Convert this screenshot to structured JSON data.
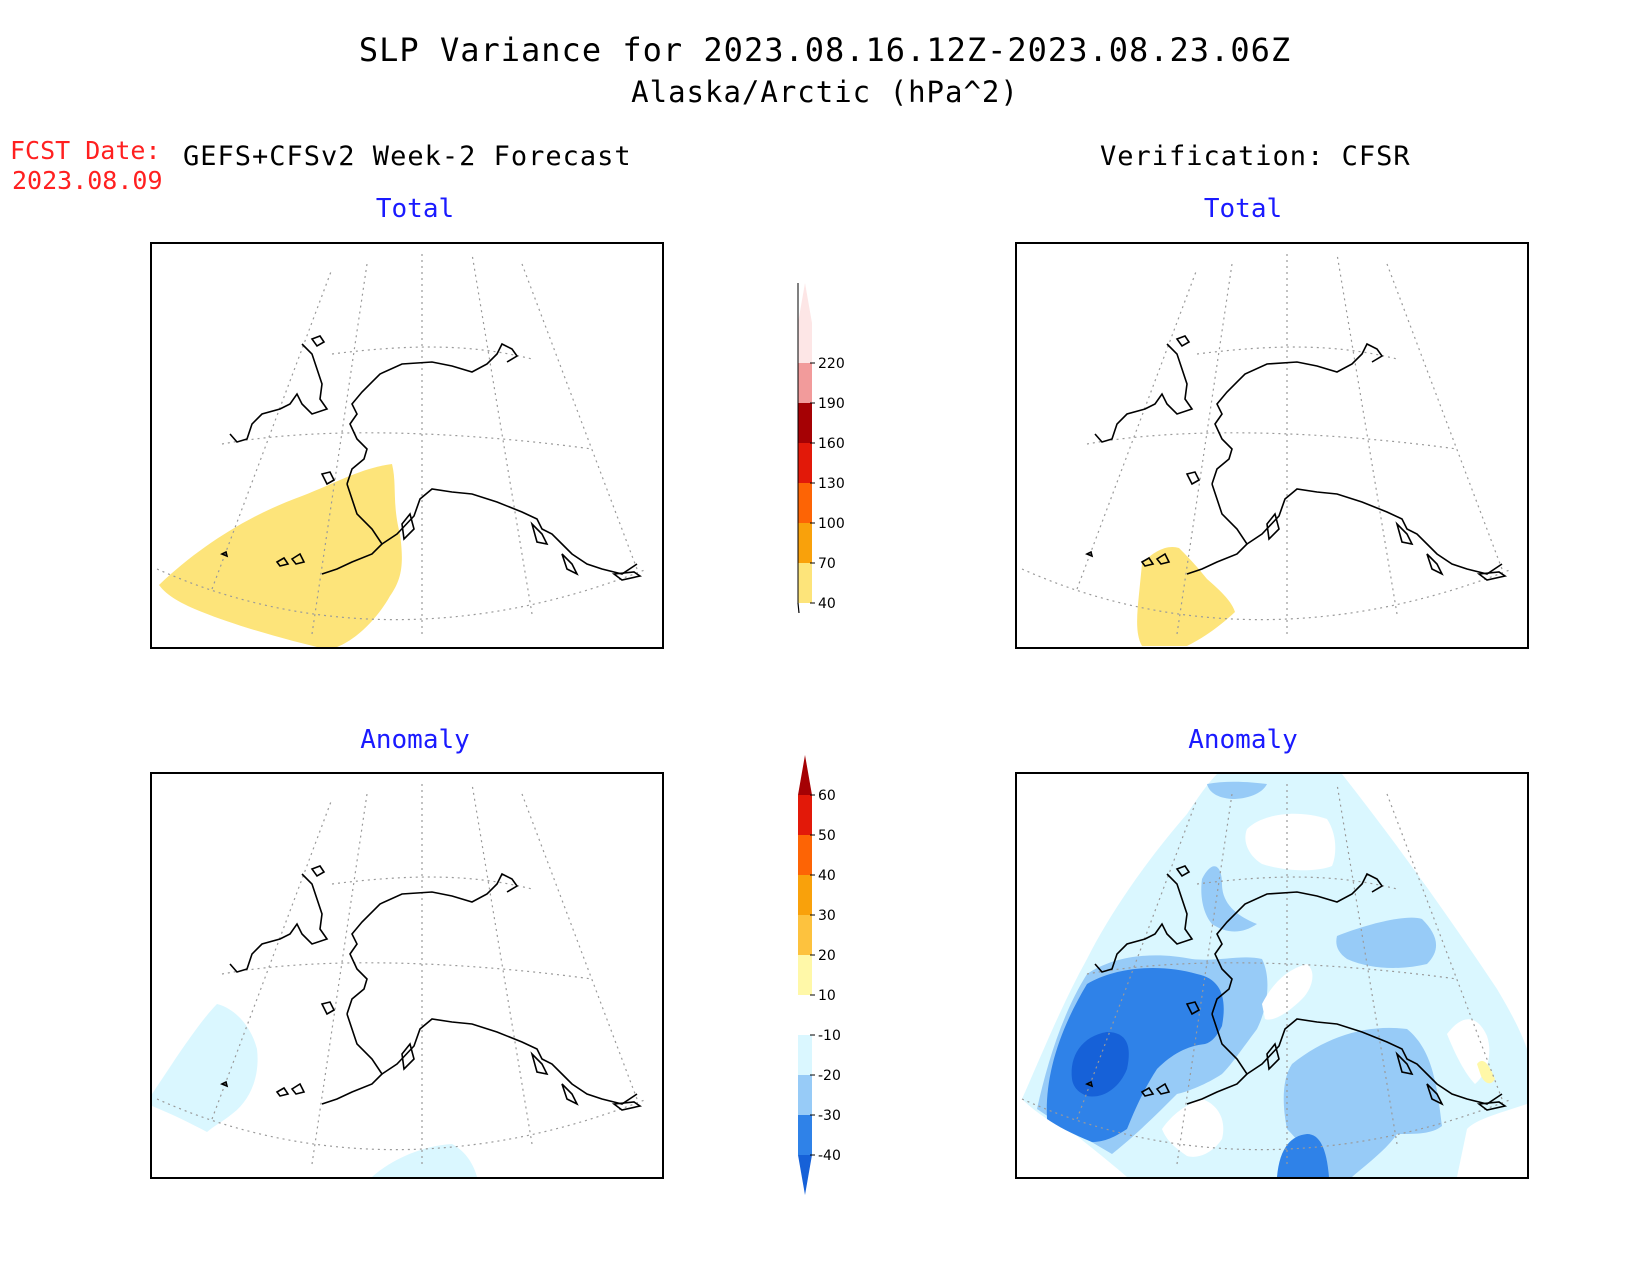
{
  "header": {
    "title": "SLP Variance for 2023.08.16.12Z-2023.08.23.06Z",
    "subtitle": "Alaska/Arctic (hPa^2)",
    "fcst_label": "FCST Date:",
    "fcst_date": "2023.08.09",
    "forecast_heading": "GEFS+CFSv2 Week-2 Forecast",
    "verification_heading": "Verification: CFSR"
  },
  "panels": {
    "fcst_total_title": "Total",
    "ver_total_title": "Total",
    "fcst_anom_title": "Anomaly",
    "ver_anom_title": "Anomaly"
  },
  "legend_total": {
    "labels": [
      "40",
      "70",
      "100",
      "130",
      "160",
      "190",
      "220"
    ],
    "colors": [
      "#fde47a",
      "#f9a10b",
      "#fd6405",
      "#e21909",
      "#a50104",
      "#f29b9b",
      "#fde6e6"
    ]
  },
  "legend_anomaly": {
    "labels": [
      "-40",
      "-30",
      "-20",
      "-10",
      "10",
      "20",
      "30",
      "40",
      "50",
      "60"
    ],
    "colors": [
      "#1661d8",
      "#2f82e8",
      "#97cbf7",
      "#daf7ff",
      "#ffffff",
      "#fff8a8",
      "#fdc23e",
      "#f9a10b",
      "#fd6405",
      "#e21909",
      "#a50104"
    ]
  },
  "colors": {
    "total_fill": "#fde47a",
    "anom_neg1": "#daf7ff",
    "anom_neg2": "#97cbf7",
    "anom_neg3": "#2f82e8",
    "anom_neg4": "#1661d8",
    "anom_pos1": "#fff8a8",
    "title_blue": "#1a1aff",
    "fcst_red": "#ff2020"
  }
}
